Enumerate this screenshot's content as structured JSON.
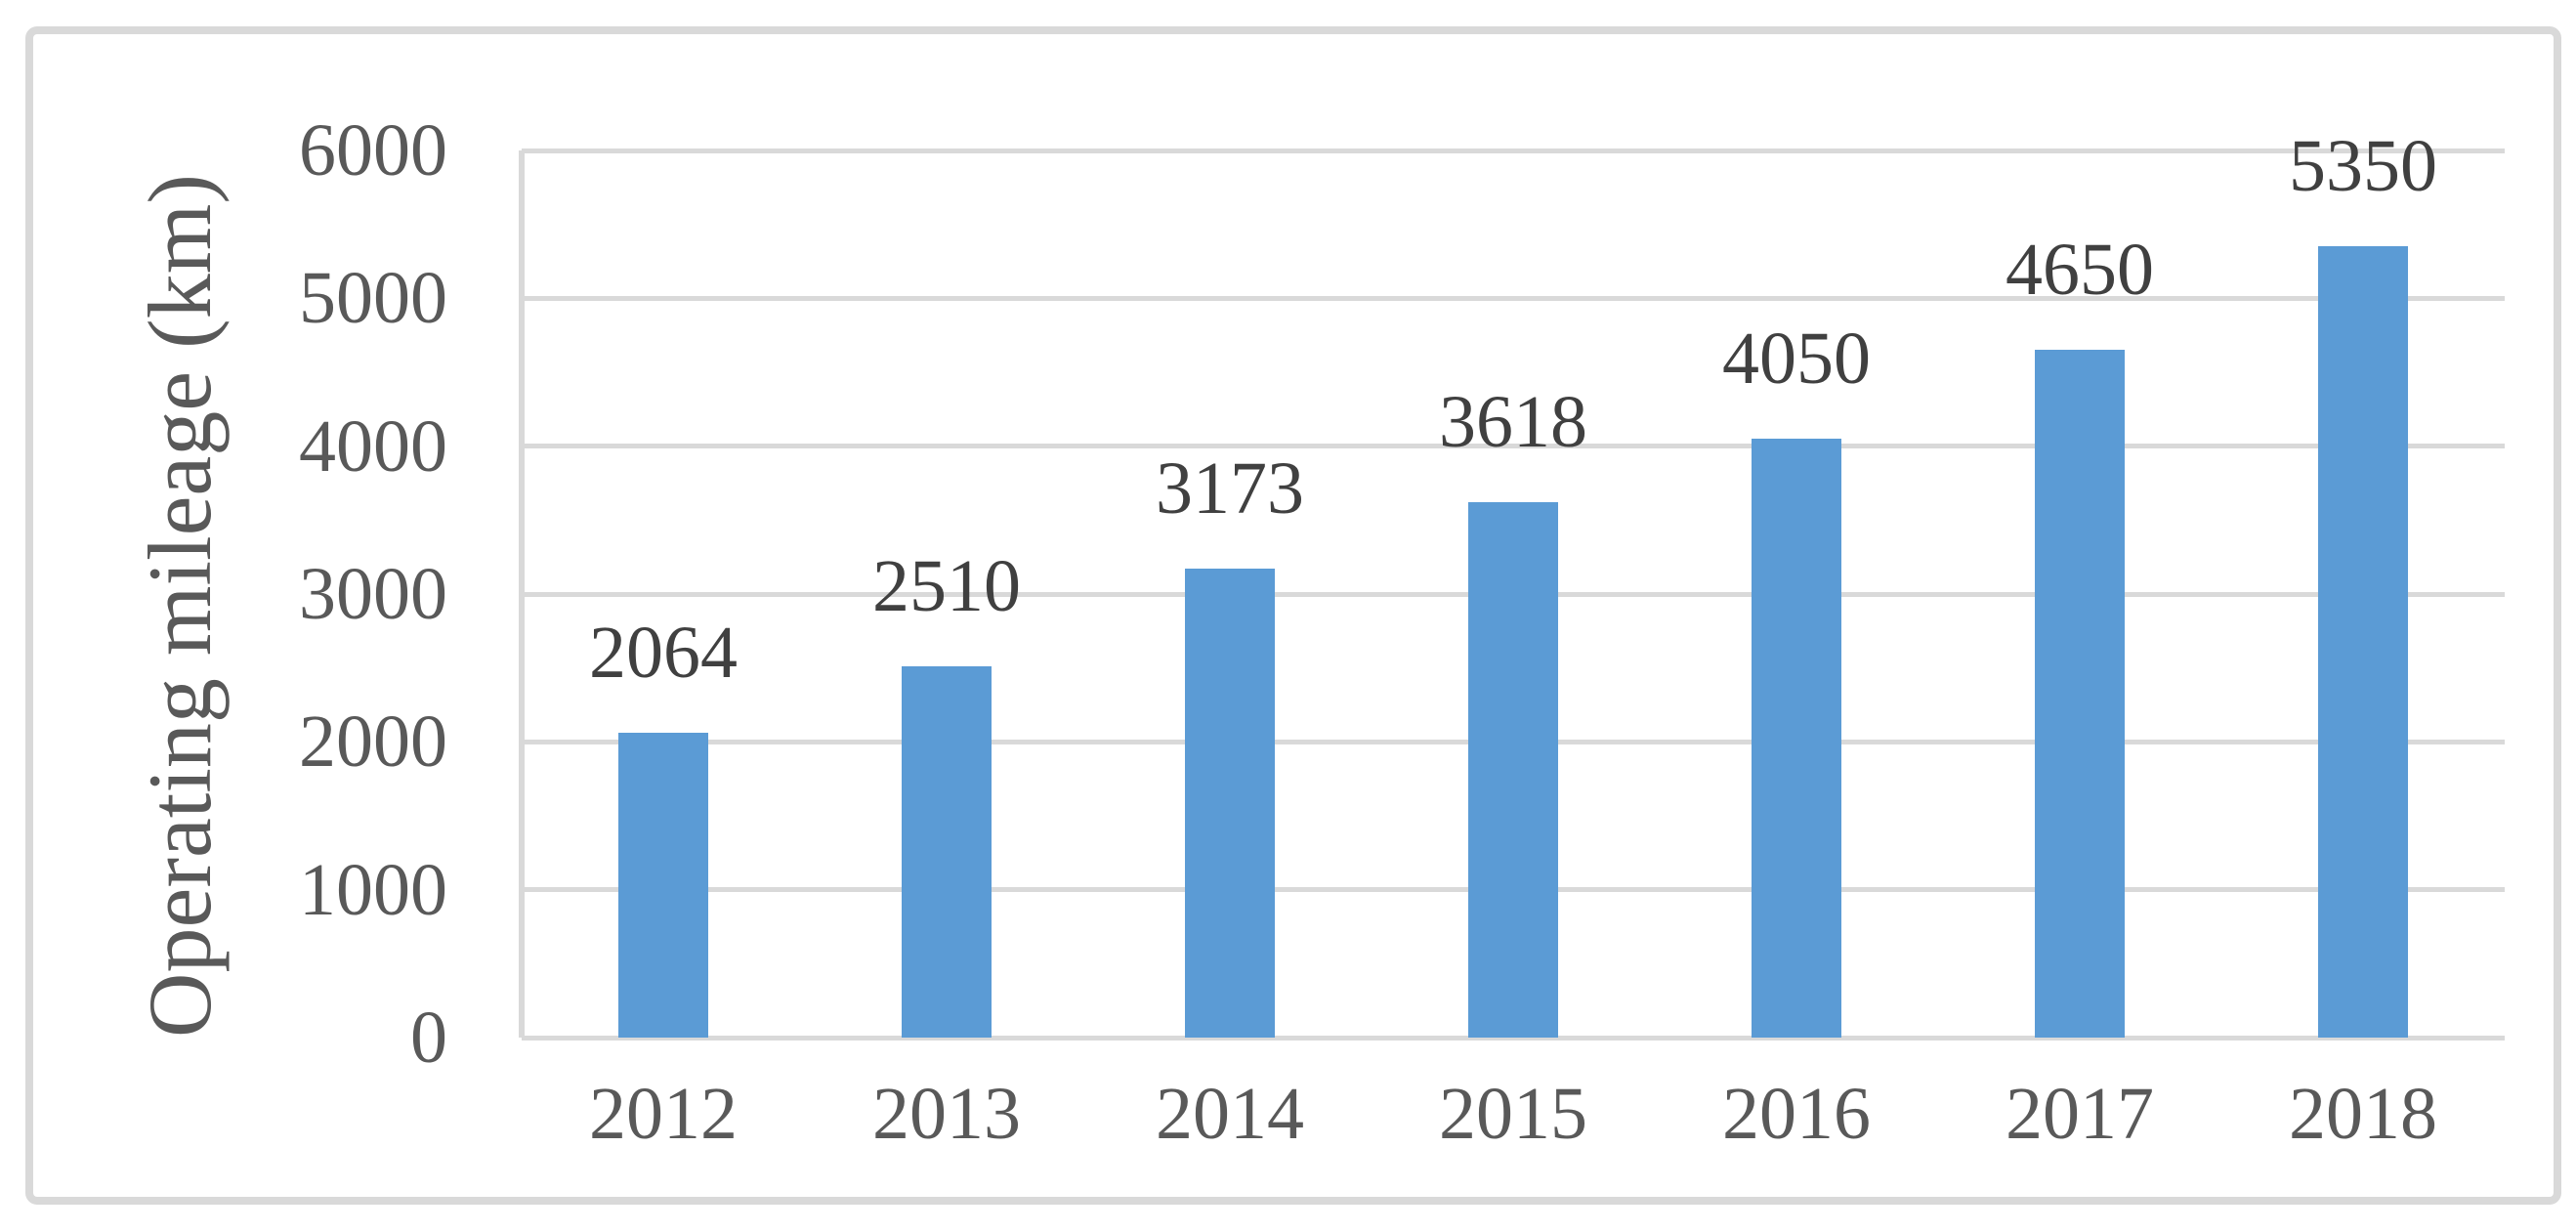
{
  "chart_data": {
    "type": "bar",
    "title": "",
    "categories": [
      "2012",
      "2013",
      "2014",
      "2015",
      "2016",
      "2017",
      "2018"
    ],
    "values": [
      2064,
      2510,
      3173,
      3618,
      4050,
      4650,
      5350
    ],
    "data_labels": [
      "2064",
      "2510",
      "3173",
      "3618",
      "4050",
      "4650",
      "5350"
    ],
    "xlabel": "",
    "ylabel": "Operating mileage  (km)",
    "ylim": [
      0,
      6000
    ],
    "yticks": [
      0,
      1000,
      2000,
      3000,
      4000,
      5000,
      6000
    ],
    "ytick_labels": [
      "0",
      "1000",
      "2000",
      "3000",
      "4000",
      "5000",
      "6000"
    ],
    "grid": "horizontal",
    "legend": "none",
    "colors": {
      "bar": "#5B9BD5",
      "gridline": "#D9D9D9",
      "axis_line": "#D9D9D9",
      "frame_border": "#D9D9D9",
      "tick_text": "#595959",
      "data_label_text": "#404040"
    }
  }
}
